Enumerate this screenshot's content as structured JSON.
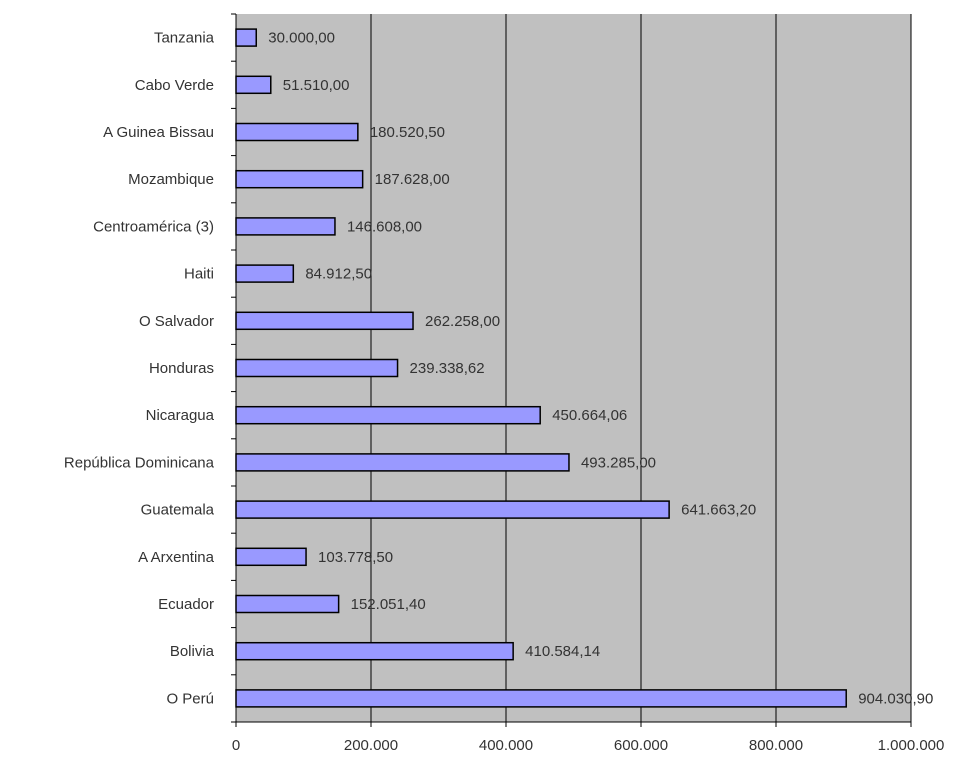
{
  "chart_data": {
    "type": "bar",
    "orientation": "horizontal",
    "categories": [
      "Tanzania",
      "Cabo Verde",
      "A Guinea Bissau",
      "Mozambique",
      "Centroamérica (3)",
      "Haiti",
      "O Salvador",
      "Honduras",
      "Nicaragua",
      "República Dominicana",
      "Guatemala",
      "A Arxentina",
      "Ecuador",
      "Bolivia",
      "O Perú"
    ],
    "values": [
      30000.0,
      51510.0,
      180520.5,
      187628.0,
      146608.0,
      84912.5,
      262258.0,
      239338.62,
      450664.06,
      493285.0,
      641663.2,
      103778.5,
      152051.4,
      410584.14,
      904030.9
    ],
    "value_labels": [
      "30.000,00",
      "51.510,00",
      "180.520,50",
      "187.628,00",
      "146.608,00",
      "84.912,50",
      "262.258,00",
      "239.338,62",
      "450.664,06",
      "493.285,00",
      "641.663,20",
      "103.778,50",
      "152.051,40",
      "410.584,14",
      "904.030,90"
    ],
    "x_ticks": [
      0,
      200000,
      400000,
      600000,
      800000,
      1000000
    ],
    "x_tick_labels": [
      "0",
      "200.000",
      "400.000",
      "600.000",
      "800.000",
      "1.000.000"
    ],
    "xlim": [
      0,
      1000000
    ],
    "title": "",
    "xlabel": "",
    "ylabel": "",
    "grid": true,
    "legend": "none",
    "colors": {
      "bar_fill": "#9999ff",
      "bar_stroke": "#000000",
      "plot_background": "#c0c0c0",
      "gridline": "#000000"
    }
  }
}
